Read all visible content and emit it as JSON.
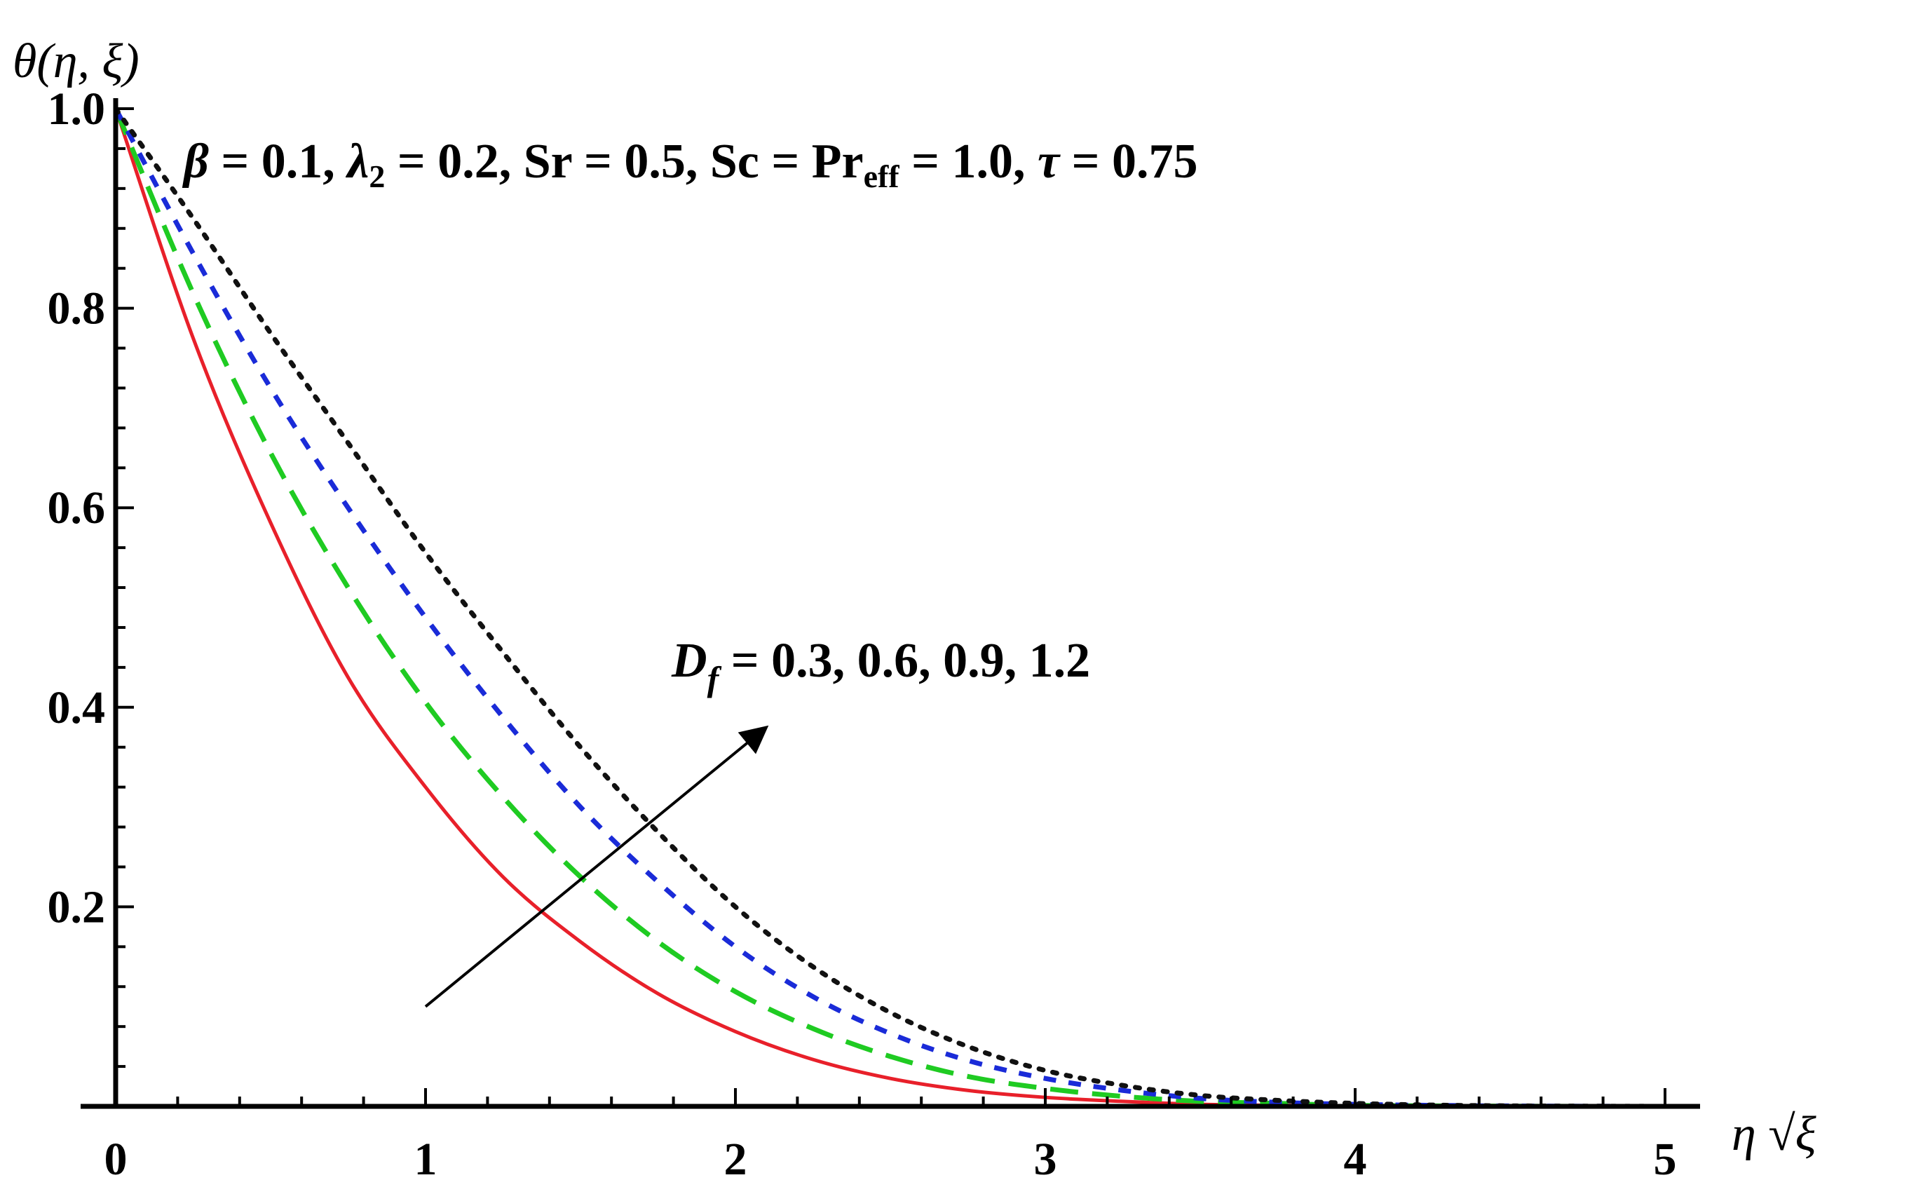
{
  "chart_data": {
    "type": "line",
    "title": "",
    "ylabel": "θ(η, ξ)",
    "xlabel": "η √ξ",
    "xlim": [
      0,
      5
    ],
    "ylim": [
      0,
      1
    ],
    "x_ticks": [
      0,
      1,
      2,
      3,
      4,
      5
    ],
    "y_ticks": [
      0.2,
      0.4,
      0.6,
      0.8,
      1.0
    ],
    "x_tick_labels": [
      "0",
      "1",
      "2",
      "3",
      "4",
      "5"
    ],
    "y_tick_labels": [
      "0.2",
      "0.4",
      "0.6",
      "0.8",
      "1.0"
    ],
    "grid": false,
    "parameters": {
      "beta": "0.1",
      "lambda2": "0.2",
      "Sr": "0.5",
      "Sc_Pr_eff": "1.0",
      "tau": "0.75"
    },
    "annotation": {
      "Df_symbol": "D",
      "Df_sub": "f",
      "Df_values": " = 0.3, 0.6, 0.9, 1.2",
      "arrow_from": [
        1.0,
        0.1
      ],
      "arrow_to": [
        2.1,
        0.38
      ]
    },
    "x": [
      0,
      0.25,
      0.5,
      0.75,
      1.0,
      1.25,
      1.5,
      1.75,
      2.0,
      2.25,
      2.5,
      2.75,
      3.0,
      3.25,
      3.5,
      3.75,
      4.0,
      4.25,
      4.5,
      4.75,
      5.0
    ],
    "series": [
      {
        "color": "#e8202a",
        "dash": "solid",
        "values": [
          1.0,
          0.77,
          0.585,
          0.43,
          0.32,
          0.23,
          0.165,
          0.113,
          0.075,
          0.047,
          0.028,
          0.016,
          0.009,
          0.005,
          0.002,
          0.001,
          0.0005,
          0.0002,
          0.0001,
          0.0,
          0.0
        ]
      },
      {
        "color": "#1fcb22",
        "dash": "dashed",
        "values": [
          1.0,
          0.815,
          0.655,
          0.52,
          0.405,
          0.31,
          0.23,
          0.165,
          0.115,
          0.078,
          0.05,
          0.03,
          0.018,
          0.01,
          0.005,
          0.003,
          0.001,
          0.0005,
          0.0002,
          0.0,
          0.0
        ]
      },
      {
        "color": "#1a2bd8",
        "dash": "short-dash",
        "values": [
          1.0,
          0.855,
          0.72,
          0.6,
          0.49,
          0.39,
          0.3,
          0.225,
          0.16,
          0.11,
          0.073,
          0.046,
          0.028,
          0.016,
          0.008,
          0.004,
          0.002,
          0.001,
          0.0004,
          0.0001,
          0.0
        ]
      },
      {
        "color": "#111111",
        "dash": "dotted",
        "values": [
          1.0,
          0.89,
          0.775,
          0.665,
          0.555,
          0.455,
          0.36,
          0.275,
          0.2,
          0.14,
          0.094,
          0.06,
          0.036,
          0.021,
          0.011,
          0.006,
          0.003,
          0.0013,
          0.0005,
          0.0002,
          0.0
        ]
      }
    ]
  }
}
